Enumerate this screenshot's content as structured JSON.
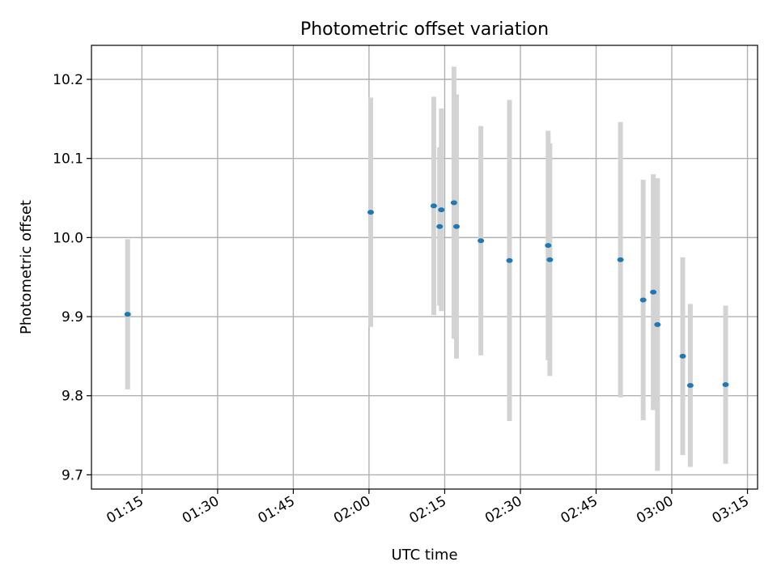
{
  "chart_data": {
    "type": "scatter",
    "title": "Photometric offset variation",
    "xlabel": "UTC time",
    "ylabel": "Photometric offset",
    "xlim": [
      "01:05",
      "03:17"
    ],
    "ylim": [
      9.682,
      10.243
    ],
    "grid": true,
    "legend": "none",
    "x_ticks": [
      "01:15",
      "01:30",
      "01:45",
      "02:00",
      "02:15",
      "02:30",
      "02:45",
      "03:00",
      "03:15"
    ],
    "y_ticks": [
      "9.7",
      "9.8",
      "9.9",
      "10.0",
      "10.1",
      "10.2"
    ],
    "point_color": "#1f77b4",
    "errorbar_color": "#d3d3d3",
    "series": [
      {
        "points": [
          {
            "x": "01:12:10",
            "y": 9.903,
            "yerr": 0.095
          },
          {
            "x": "02:00:20",
            "y": 10.032,
            "yerr": 0.145
          },
          {
            "x": "02:12:50",
            "y": 10.04,
            "yerr": 0.138
          },
          {
            "x": "02:14:00",
            "y": 10.014,
            "yerr": 0.1
          },
          {
            "x": "02:14:20",
            "y": 10.035,
            "yerr": 0.128
          },
          {
            "x": "02:16:50",
            "y": 10.044,
            "yerr": 0.172
          },
          {
            "x": "02:17:20",
            "y": 10.014,
            "yerr": 0.167
          },
          {
            "x": "02:22:10",
            "y": 9.996,
            "yerr": 0.145
          },
          {
            "x": "02:27:50",
            "y": 9.971,
            "yerr": 0.203
          },
          {
            "x": "02:35:30",
            "y": 9.99,
            "yerr": 0.145
          },
          {
            "x": "02:35:50",
            "y": 9.972,
            "yerr": 0.147
          },
          {
            "x": "02:49:50",
            "y": 9.972,
            "yerr": 0.174
          },
          {
            "x": "02:54:20",
            "y": 9.921,
            "yerr": 0.152
          },
          {
            "x": "02:56:20",
            "y": 9.931,
            "yerr": 0.149
          },
          {
            "x": "02:57:10",
            "y": 9.89,
            "yerr": 0.185
          },
          {
            "x": "03:02:10",
            "y": 9.85,
            "yerr": 0.125
          },
          {
            "x": "03:03:40",
            "y": 9.813,
            "yerr": 0.103
          },
          {
            "x": "03:10:40",
            "y": 9.814,
            "yerr": 0.1
          }
        ]
      }
    ]
  }
}
